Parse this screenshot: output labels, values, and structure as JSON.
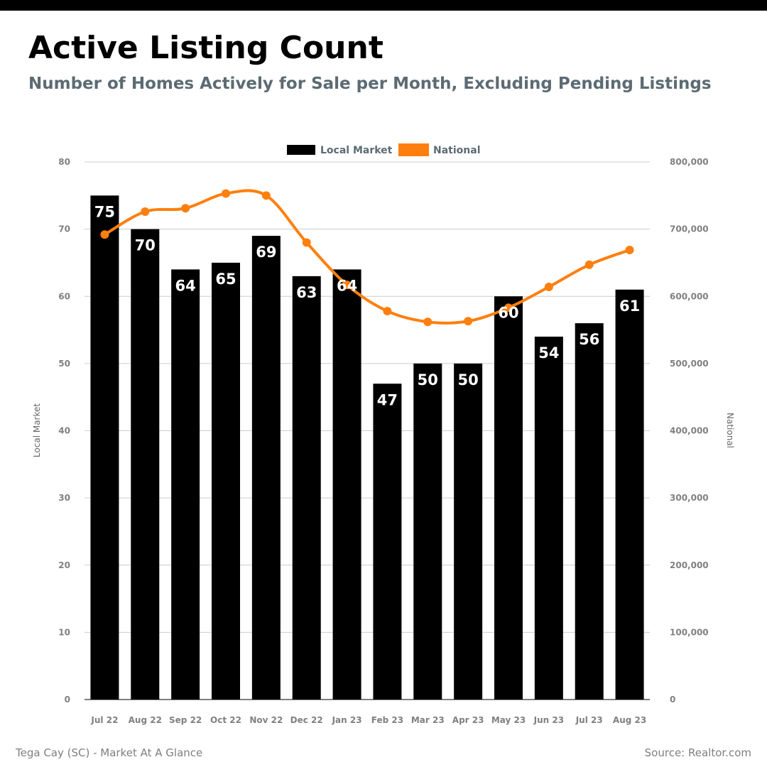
{
  "header": {
    "title": "Active Listing Count",
    "subtitle": "Number of Homes Actively for Sale per Month, Excluding Pending Listings"
  },
  "footer": {
    "left": "Tega Cay (SC) - Market At A Glance",
    "right": "Source: Realtor.com"
  },
  "chart_data": {
    "type": "bar",
    "categories": [
      "Jul 22",
      "Aug 22",
      "Sep 22",
      "Oct 22",
      "Nov 22",
      "Dec 22",
      "Jan 23",
      "Feb 23",
      "Mar 23",
      "Apr 23",
      "May 23",
      "Jun 23",
      "Jul 23",
      "Aug 23"
    ],
    "series": [
      {
        "name": "Local Market",
        "type": "bar",
        "axis": "left",
        "color": "#000000",
        "values": [
          75,
          70,
          64,
          65,
          69,
          63,
          64,
          47,
          50,
          50,
          60,
          54,
          56,
          61
        ]
      },
      {
        "name": "National",
        "type": "line",
        "axis": "right",
        "color": "#ff7f0e",
        "values": [
          692000,
          726000,
          731000,
          753000,
          750000,
          680000,
          617000,
          578000,
          562000,
          563000,
          583000,
          614000,
          647000,
          669000
        ]
      }
    ],
    "ylabel": "Local Market",
    "ylabel_right": "National",
    "ylim": [
      0,
      80
    ],
    "ylim_right": [
      0,
      800000
    ],
    "yticks": [
      "0",
      "10",
      "20",
      "30",
      "40",
      "50",
      "60",
      "70",
      "80"
    ],
    "yticks_right": [
      "0",
      "100,000",
      "200,000",
      "300,000",
      "400,000",
      "500,000",
      "600,000",
      "700,000",
      "800,000"
    ],
    "grid": true,
    "legend": "top-center"
  }
}
